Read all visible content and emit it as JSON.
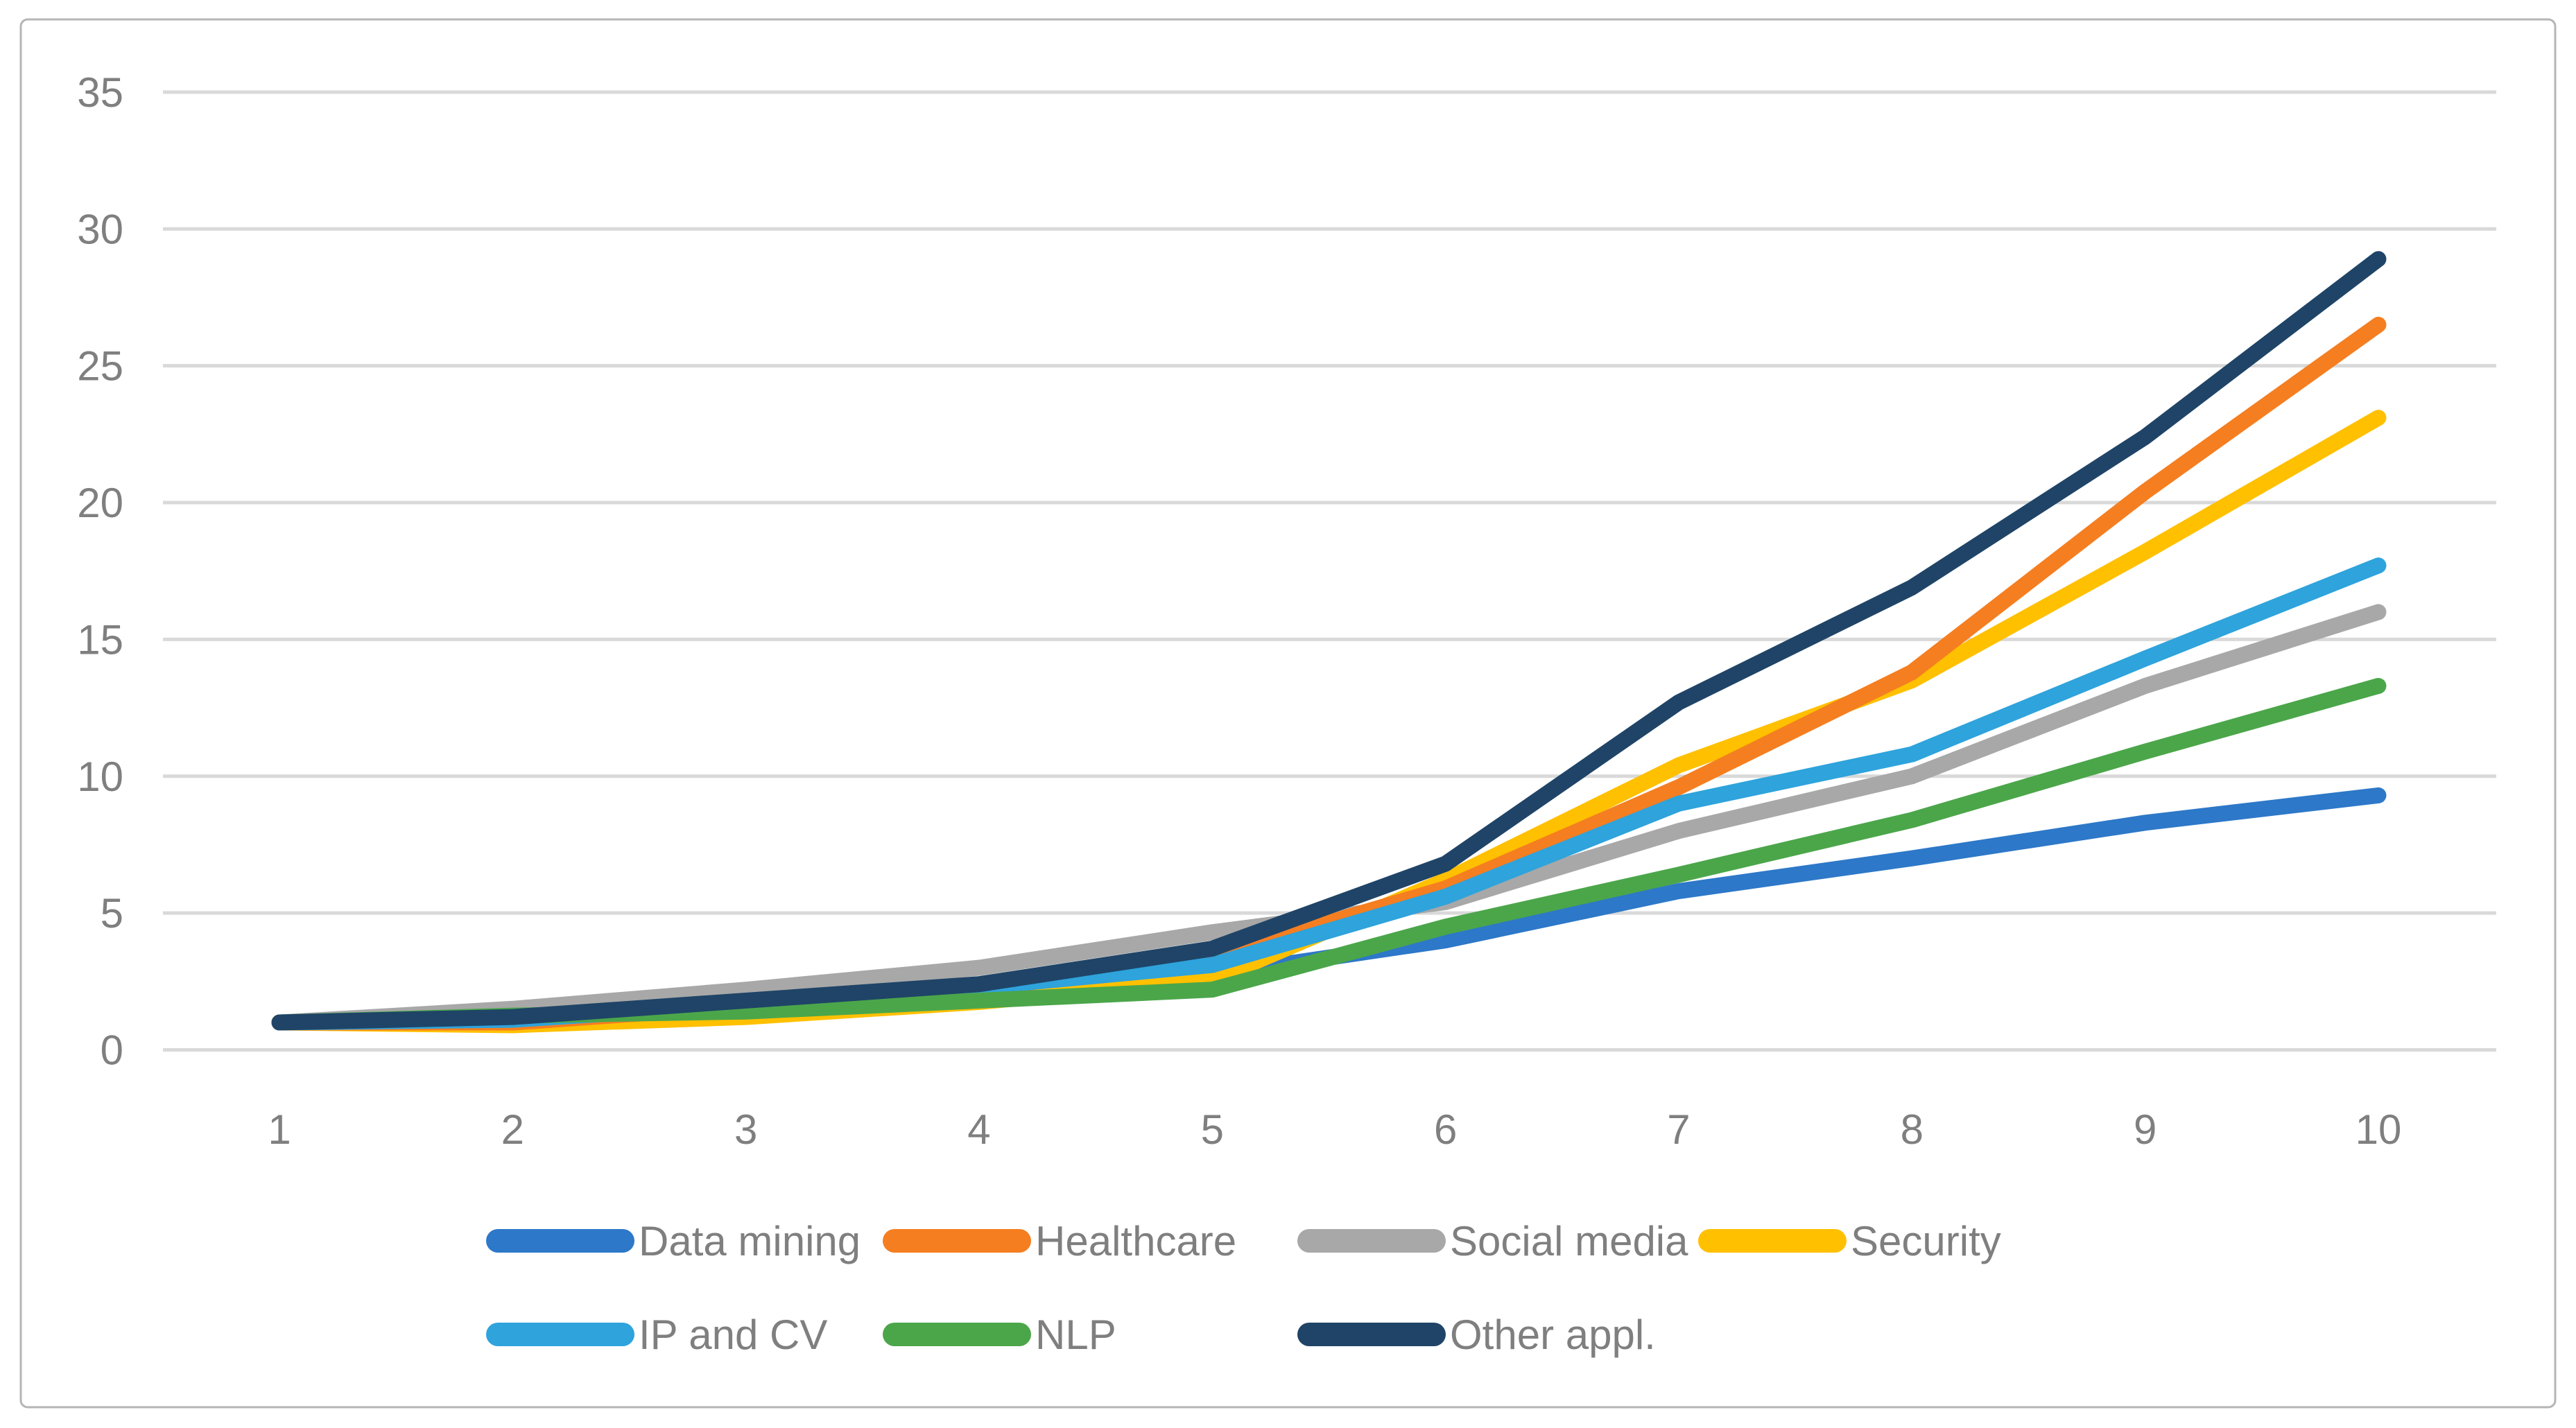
{
  "figure": {
    "type": "line-chart-figure",
    "background": "#ffffff",
    "border_color": "#b5b5b5",
    "gridline_color": "#d9d9d9",
    "label_color": "#7f7f7f"
  },
  "chart_data": {
    "type": "line",
    "title": "",
    "xlabel": "",
    "ylabel": "",
    "x": [
      1,
      2,
      3,
      4,
      5,
      6,
      7,
      8,
      9,
      10
    ],
    "xticks": [
      "1",
      "2",
      "3",
      "4",
      "5",
      "6",
      "7",
      "8",
      "9",
      "10"
    ],
    "yticks": [
      0,
      5,
      10,
      15,
      20,
      25,
      30,
      35
    ],
    "ylim": [
      0,
      35
    ],
    "grid": "horizontal",
    "legend_position": "bottom",
    "series": [
      {
        "name": "Data mining",
        "color": "#2d78c8",
        "values": [
          1.0,
          1.05,
          1.6,
          2.1,
          2.75,
          4.0,
          5.8,
          7.0,
          8.3,
          9.3
        ]
      },
      {
        "name": "Healthcare",
        "color": "#f57e20",
        "values": [
          1.0,
          1.0,
          1.6,
          2.2,
          3.4,
          5.9,
          9.6,
          13.8,
          20.4,
          26.5
        ]
      },
      {
        "name": "Social media",
        "color": "#a8a8a8",
        "values": [
          1.0,
          1.5,
          2.2,
          3.0,
          4.3,
          5.4,
          8.0,
          10.0,
          13.3,
          16.0
        ]
      },
      {
        "name": "Security",
        "color": "#ffc000",
        "values": [
          1.0,
          0.9,
          1.2,
          1.75,
          2.55,
          6.2,
          10.4,
          13.5,
          18.2,
          23.1
        ]
      },
      {
        "name": "IP and CV",
        "color": "#2ea3dc",
        "values": [
          1.0,
          1.1,
          1.65,
          2.3,
          3.1,
          5.6,
          9.0,
          10.8,
          14.3,
          17.7
        ]
      },
      {
        "name": "NLP",
        "color": "#4ba64a",
        "values": [
          1.0,
          1.25,
          1.4,
          1.8,
          2.2,
          4.5,
          6.4,
          8.4,
          10.9,
          13.3
        ]
      },
      {
        "name": "Other appl.",
        "color": "#1f4467",
        "values": [
          1.0,
          1.2,
          1.8,
          2.4,
          3.7,
          6.8,
          12.7,
          16.9,
          22.4,
          28.9
        ]
      }
    ]
  },
  "legend": {
    "rows": [
      [
        "Data mining",
        "Healthcare",
        "Social media",
        "Security"
      ],
      [
        "IP and CV",
        "NLP",
        "Other appl."
      ]
    ]
  }
}
